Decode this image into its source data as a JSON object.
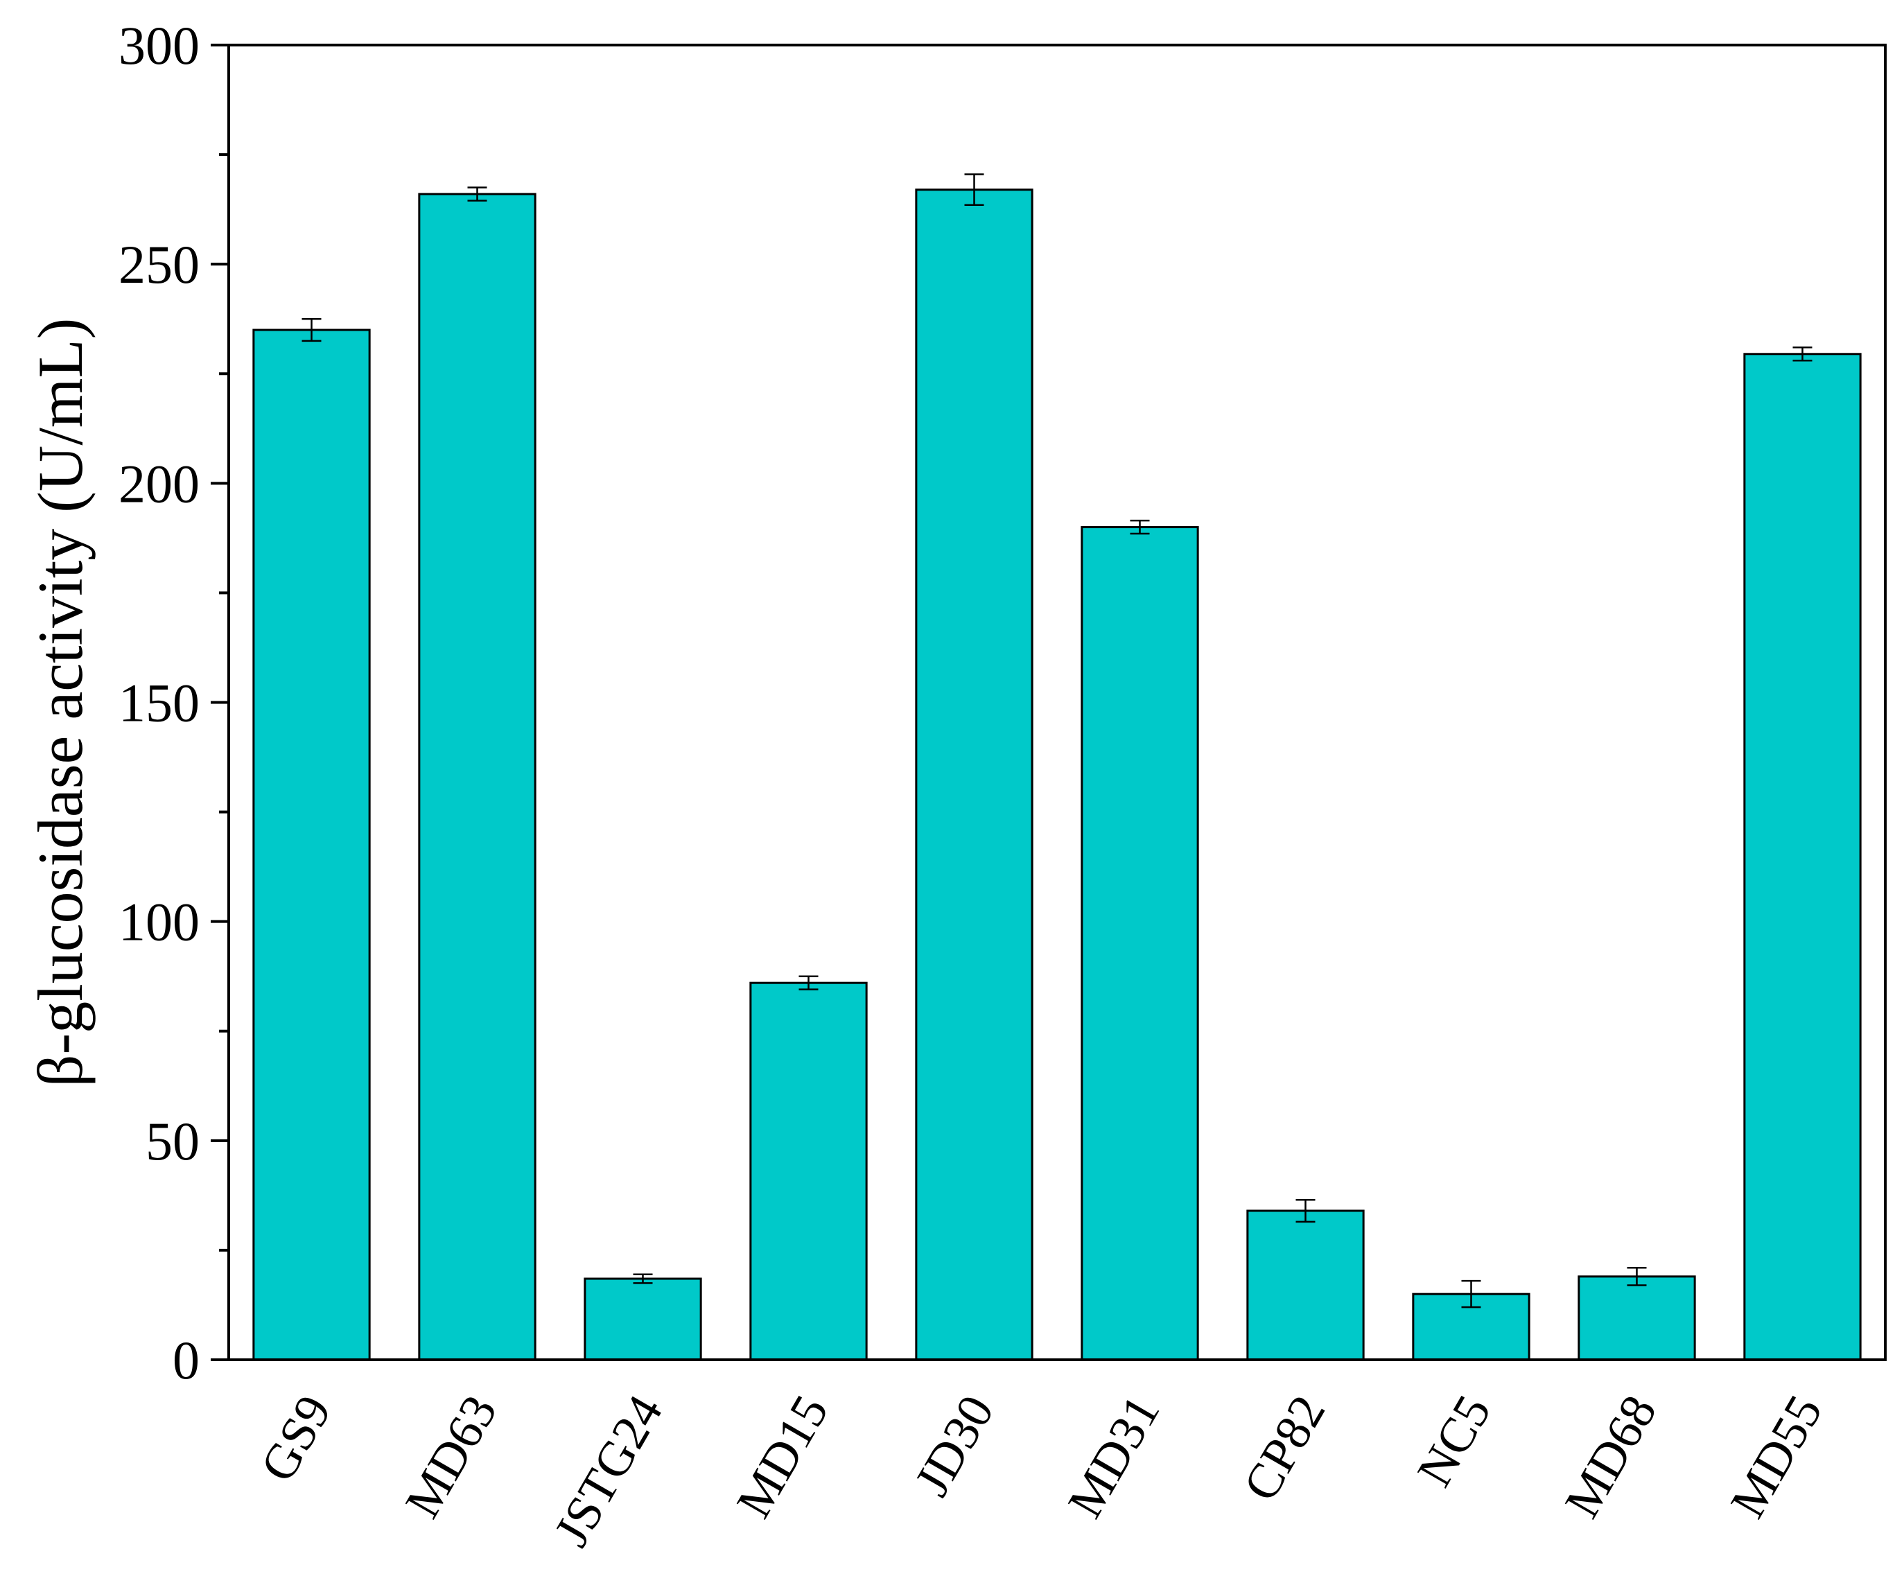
{
  "chart_data": {
    "type": "bar",
    "title": "",
    "xlabel": "",
    "ylabel": "β-glucosidase activity (U/mL)",
    "categories": [
      "GS9",
      "MD63",
      "JSTG24",
      "MD15",
      "JD30",
      "MD31",
      "CP82",
      "NC5",
      "MD68",
      "MD55"
    ],
    "values": [
      235,
      266,
      18.5,
      86,
      267,
      190,
      34,
      15,
      19,
      229.5
    ],
    "errors": [
      2.5,
      1.5,
      1.0,
      1.5,
      3.5,
      1.5,
      2.5,
      3.0,
      2.0,
      1.5
    ],
    "ylim": [
      0,
      300
    ],
    "yticks": [
      0,
      50,
      100,
      150,
      200,
      250,
      300
    ],
    "y_minor_ticks": [
      25,
      75,
      125,
      175,
      225,
      275
    ],
    "bar_color": "#00C9C9",
    "edge_color": "#000000",
    "grid": false,
    "legend": "none"
  }
}
